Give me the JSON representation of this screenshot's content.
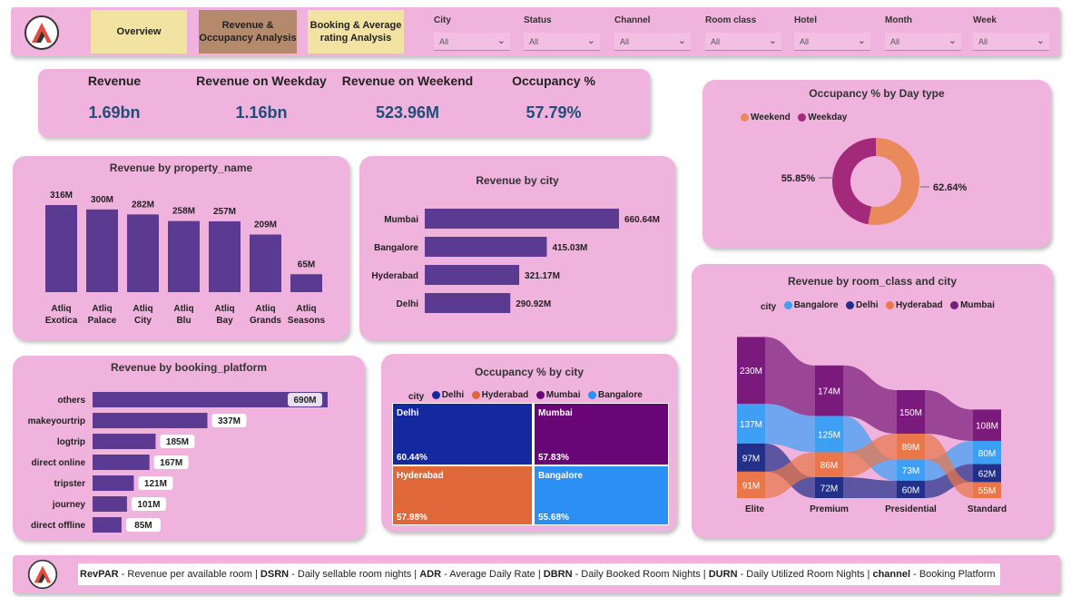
{
  "header": {
    "nav": [
      {
        "label": "Overview",
        "bg": "#f2e3a2"
      },
      {
        "label": "Revenue & Occupancy Analysis",
        "bg": "#b5896b"
      },
      {
        "label": "Booking & Average rating Analysis",
        "bg": "#f2e3a2"
      }
    ],
    "filters": [
      {
        "label": "City",
        "value": "All"
      },
      {
        "label": "Status",
        "value": "All"
      },
      {
        "label": "Channel",
        "value": "All"
      },
      {
        "label": "Room class",
        "value": "All"
      },
      {
        "label": "Hotel",
        "value": "All"
      },
      {
        "label": "Month",
        "value": "All"
      },
      {
        "label": "Week",
        "value": "All"
      }
    ]
  },
  "kpis": [
    {
      "label": "Revenue",
      "value": "1.69bn"
    },
    {
      "label": "Revenue on Weekday",
      "value": "1.16bn"
    },
    {
      "label": "Revenue on Weekend",
      "value": "523.96M"
    },
    {
      "label": "Occupancy %",
      "value": "57.79%"
    }
  ],
  "footer": {
    "items": [
      {
        "abbr": "RevPAR",
        "desc": " - Revenue per available room | "
      },
      {
        "abbr": "DSRN",
        "desc": " - Daily sellable room nights | "
      },
      {
        "abbr": "ADR",
        "desc": " - Average Daily Rate | "
      },
      {
        "abbr": "DBRN",
        "desc": " - Daily Booked Room Nights | "
      },
      {
        "abbr": "DURN",
        "desc": " - Daily Utilized Room Nights | "
      },
      {
        "abbr": "channel",
        "desc": " - Booking Platform"
      }
    ]
  },
  "chart_data": [
    {
      "id": "property",
      "type": "bar",
      "title": "Revenue by property_name",
      "categories": [
        "Atliq Exotica",
        "Atliq Palace",
        "Atliq City",
        "Atliq Blu",
        "Atliq Bay",
        "Atliq Grands",
        "Atliq Seasons"
      ],
      "values": [
        316,
        300,
        282,
        258,
        257,
        209,
        65
      ],
      "labels": [
        "316M",
        "300M",
        "282M",
        "258M",
        "257M",
        "209M",
        "65M"
      ],
      "color": "#5b3a91"
    },
    {
      "id": "city",
      "type": "bar",
      "orientation": "horizontal",
      "title": "Revenue by city",
      "categories": [
        "Mumbai",
        "Bangalore",
        "Hyderabad",
        "Delhi"
      ],
      "values": [
        660.64,
        415.03,
        321.17,
        290.92
      ],
      "labels": [
        "660.64M",
        "415.03M",
        "321.17M",
        "290.92M"
      ],
      "color": "#5b3a91"
    },
    {
      "id": "daytype",
      "type": "pie",
      "title": "Occupancy % by Day type",
      "legend": [
        {
          "name": "Weekend",
          "color": "#e9895c"
        },
        {
          "name": "Weekday",
          "color": "#a3297a"
        }
      ],
      "slices": [
        {
          "name": "Weekend",
          "value": 62.64,
          "label": "62.64%",
          "color": "#e9895c"
        },
        {
          "name": "Weekday",
          "value": 55.85,
          "label": "55.85%",
          "color": "#a3297a"
        }
      ]
    },
    {
      "id": "platform",
      "type": "bar",
      "orientation": "horizontal",
      "title": "Revenue by booking_platform",
      "categories": [
        "others",
        "makeyourtrip",
        "logtrip",
        "direct online",
        "tripster",
        "journey",
        "direct offline"
      ],
      "values": [
        690,
        337,
        185,
        167,
        121,
        101,
        85
      ],
      "labels": [
        "690M",
        "337M",
        "185M",
        "167M",
        "121M",
        "101M",
        "85M"
      ],
      "color": "#5b3a91"
    },
    {
      "id": "occ_city",
      "type": "heatmap",
      "title": "Occupancy % by city",
      "legend_title": "city",
      "legend": [
        {
          "name": "Delhi",
          "color": "#1428a0"
        },
        {
          "name": "Hyderabad",
          "color": "#e0673a"
        },
        {
          "name": "Mumbai",
          "color": "#6a0578"
        },
        {
          "name": "Bangalore",
          "color": "#2b8ff5"
        }
      ],
      "cells": [
        {
          "name": "Delhi",
          "value": "60.44%",
          "color": "#1428a0"
        },
        {
          "name": "Mumbai",
          "value": "57.83%",
          "color": "#6a0578"
        },
        {
          "name": "Hyderabad",
          "value": "57.98%",
          "color": "#e0673a"
        },
        {
          "name": "Bangalore",
          "value": "55.68%",
          "color": "#2b8ff5"
        }
      ]
    },
    {
      "id": "room_class",
      "type": "area",
      "title": "Revenue by room_class and city",
      "legend_title": "city",
      "categories": [
        "Elite",
        "Premium",
        "Presidential",
        "Standard"
      ],
      "series": [
        {
          "name": "Bangalore",
          "color": "#3ea0f5",
          "values": [
            137,
            125,
            73,
            80
          ],
          "labels": [
            "137M",
            "125M",
            "73M",
            "80M"
          ]
        },
        {
          "name": "Delhi",
          "color": "#23308a",
          "values": [
            97,
            72,
            60,
            62
          ],
          "labels": [
            "97M",
            "72M",
            "60M",
            "62M"
          ]
        },
        {
          "name": "Hyderabad",
          "color": "#e9774a",
          "values": [
            91,
            86,
            89,
            55
          ],
          "labels": [
            "91M",
            "86M",
            "89M",
            "55M"
          ]
        },
        {
          "name": "Mumbai",
          "color": "#7a1a7c",
          "values": [
            230,
            174,
            150,
            108
          ],
          "labels": [
            "230M",
            "174M",
            "150M",
            "108M"
          ]
        }
      ],
      "order": [
        [
          "Mumbai",
          "Bangalore",
          "Delhi",
          "Hyderabad"
        ],
        [
          "Mumbai",
          "Bangalore",
          "Hyderabad",
          "Delhi"
        ],
        [
          "Mumbai",
          "Hyderabad",
          "Bangalore",
          "Delhi"
        ],
        [
          "Mumbai",
          "Bangalore",
          "Delhi",
          "Hyderabad"
        ]
      ]
    }
  ]
}
